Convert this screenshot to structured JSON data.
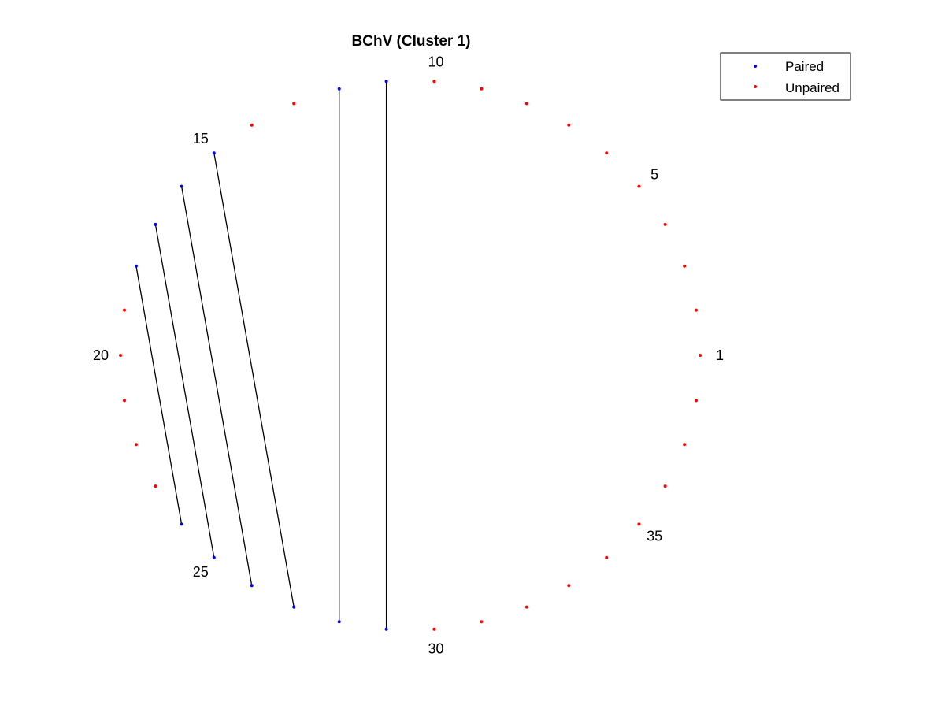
{
  "chart_data": {
    "type": "scatter",
    "subtype": "circular-arc-diagram",
    "title": "BChV (Cluster 1)",
    "n_positions": 38,
    "start_position": 1,
    "direction": "counterclockwise",
    "position_labels": [
      "1",
      "5",
      "10",
      "15",
      "20",
      "25",
      "30",
      "35"
    ],
    "labeled_positions": [
      1,
      5,
      10,
      15,
      20,
      25,
      30,
      35
    ],
    "paired_positions": [
      11,
      12,
      15,
      16,
      17,
      18,
      24,
      25,
      26,
      27,
      28,
      29
    ],
    "pairs": [
      [
        11,
        29
      ],
      [
        12,
        28
      ],
      [
        15,
        27
      ],
      [
        16,
        26
      ],
      [
        17,
        25
      ],
      [
        18,
        24
      ]
    ],
    "series": [
      {
        "name": "Paired",
        "color": "#0000ff"
      },
      {
        "name": "Unpaired",
        "color": "#ff0000"
      }
    ],
    "link_color": "#000000",
    "legend": {
      "placement": "top-right",
      "box": true
    },
    "axes_visible": false,
    "grid": false
  }
}
